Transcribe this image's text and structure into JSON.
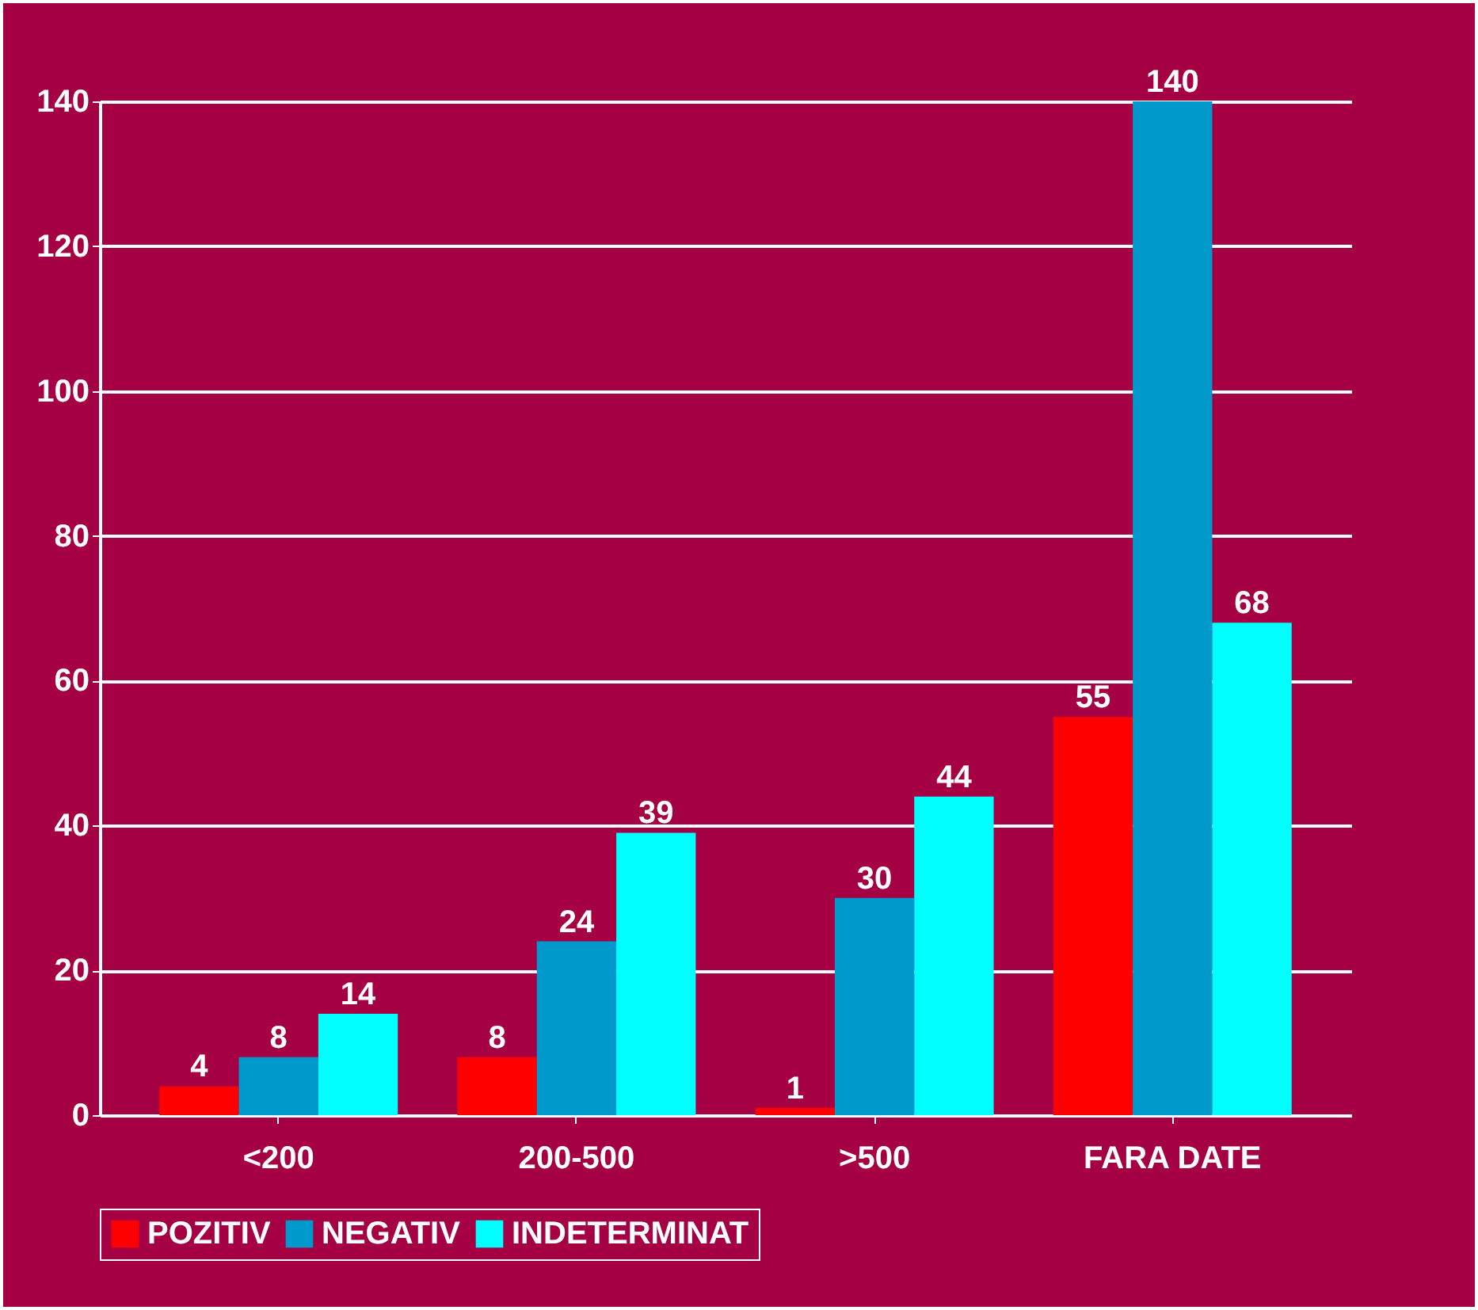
{
  "chart_data": {
    "type": "bar",
    "categories": [
      "<200",
      "200-500",
      ">500",
      "FARA DATE"
    ],
    "series": [
      {
        "name": "POZITIV",
        "color": "#ff0000",
        "values": [
          4,
          8,
          1,
          55
        ]
      },
      {
        "name": "NEGATIV",
        "color": "#0099cc",
        "values": [
          8,
          24,
          30,
          140
        ]
      },
      {
        "name": "INDETERMINAT",
        "color": "#00ffff",
        "values": [
          14,
          39,
          44,
          68
        ]
      }
    ],
    "ylim": [
      0,
      140
    ],
    "yticks": [
      0,
      20,
      40,
      60,
      80,
      100,
      120,
      140
    ],
    "grid": true,
    "legend": "bottom",
    "data_labels": true
  }
}
